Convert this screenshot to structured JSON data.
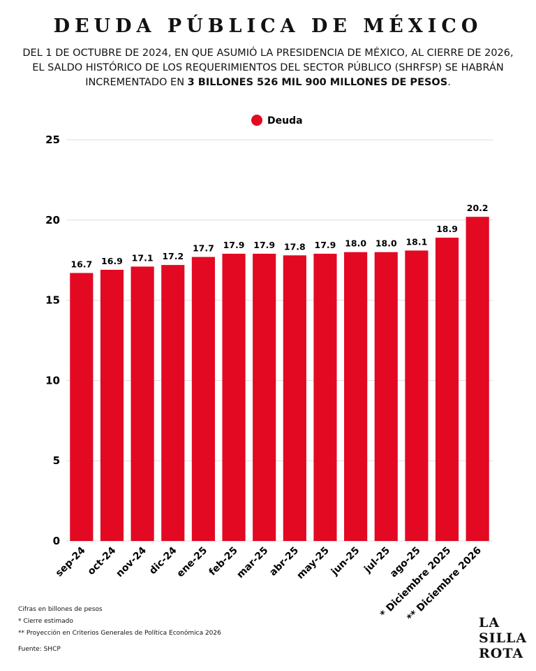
{
  "chart_data": {
    "type": "bar",
    "title": "DEUDA PÚBLICA DE MÉXICO",
    "subtitle": [
      "DEL 1 DE OCTUBRE DE 2024, EN QUE ASUMIÓ LA PRESIDENCIA DE MÉXICO, AL CIERRE DE 2026, EL SALDO HISTÓRICO DE LOS REQUERIMIENTOS DEL SECTOR PÚBLICO (SHRFSP) SE HABRÁN INCREMENTADO EN",
      "3 BILLONES 526 MIL 900 MILLONES DE PESOS",
      "."
    ],
    "categories": [
      "sep-24",
      "oct-24",
      "nov-24",
      "dic-24",
      "ene-25",
      "feb-25",
      "mar-25",
      "abr-25",
      "may-25",
      "jun-25",
      "jul-25",
      "ago-25",
      "* Diciembre 2025",
      "** Diciembre 2026"
    ],
    "series": [
      {
        "name": "Deuda",
        "color": "#e30922",
        "values": [
          16.7,
          16.9,
          17.1,
          17.2,
          17.7,
          17.9,
          17.9,
          17.8,
          17.9,
          18.0,
          18.0,
          18.1,
          18.9,
          20.2
        ],
        "value_labels": [
          "16.7",
          "16.9",
          "17.1",
          "17.2",
          "17.7",
          "17.9",
          "17.9",
          "17.8",
          "17.9",
          "18.0",
          "18.0",
          "18.1",
          "18.9",
          "20.2"
        ]
      }
    ],
    "ylim": [
      0,
      25
    ],
    "yticks": [
      0,
      5,
      10,
      15,
      20,
      25
    ],
    "grid": true,
    "legend": "top",
    "notes": [
      "Cifras en billones de pesos",
      "* Cierre estimado",
      "** Proyección en Criterios Generales de Política Económica 2026"
    ],
    "source": "Fuente: SHCP",
    "logo": [
      "LA",
      "SILLA",
      "ROTA"
    ]
  }
}
